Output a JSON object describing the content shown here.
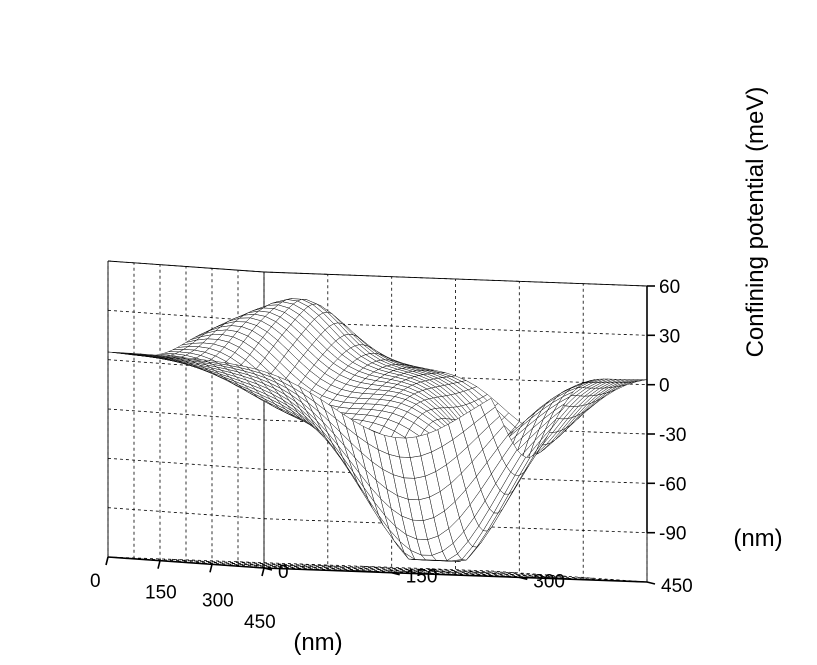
{
  "chart_data": {
    "type": "surface",
    "title": "",
    "xlabel": "(nm)",
    "ylabel": "(nm)",
    "zlabel": "Confining potential (meV)",
    "x_ticks": [
      0,
      150,
      300,
      450
    ],
    "y_ticks": [
      0,
      150,
      300,
      450
    ],
    "z_ticks": [
      60,
      30,
      0,
      -30,
      -60,
      -90
    ],
    "xlim": [
      0,
      450
    ],
    "ylim": [
      0,
      450
    ],
    "zlim": [
      -120,
      60
    ],
    "grid": true,
    "colors": {
      "mesh": "#000000",
      "fill": "#ffffff",
      "grid": "#000000"
    }
  }
}
